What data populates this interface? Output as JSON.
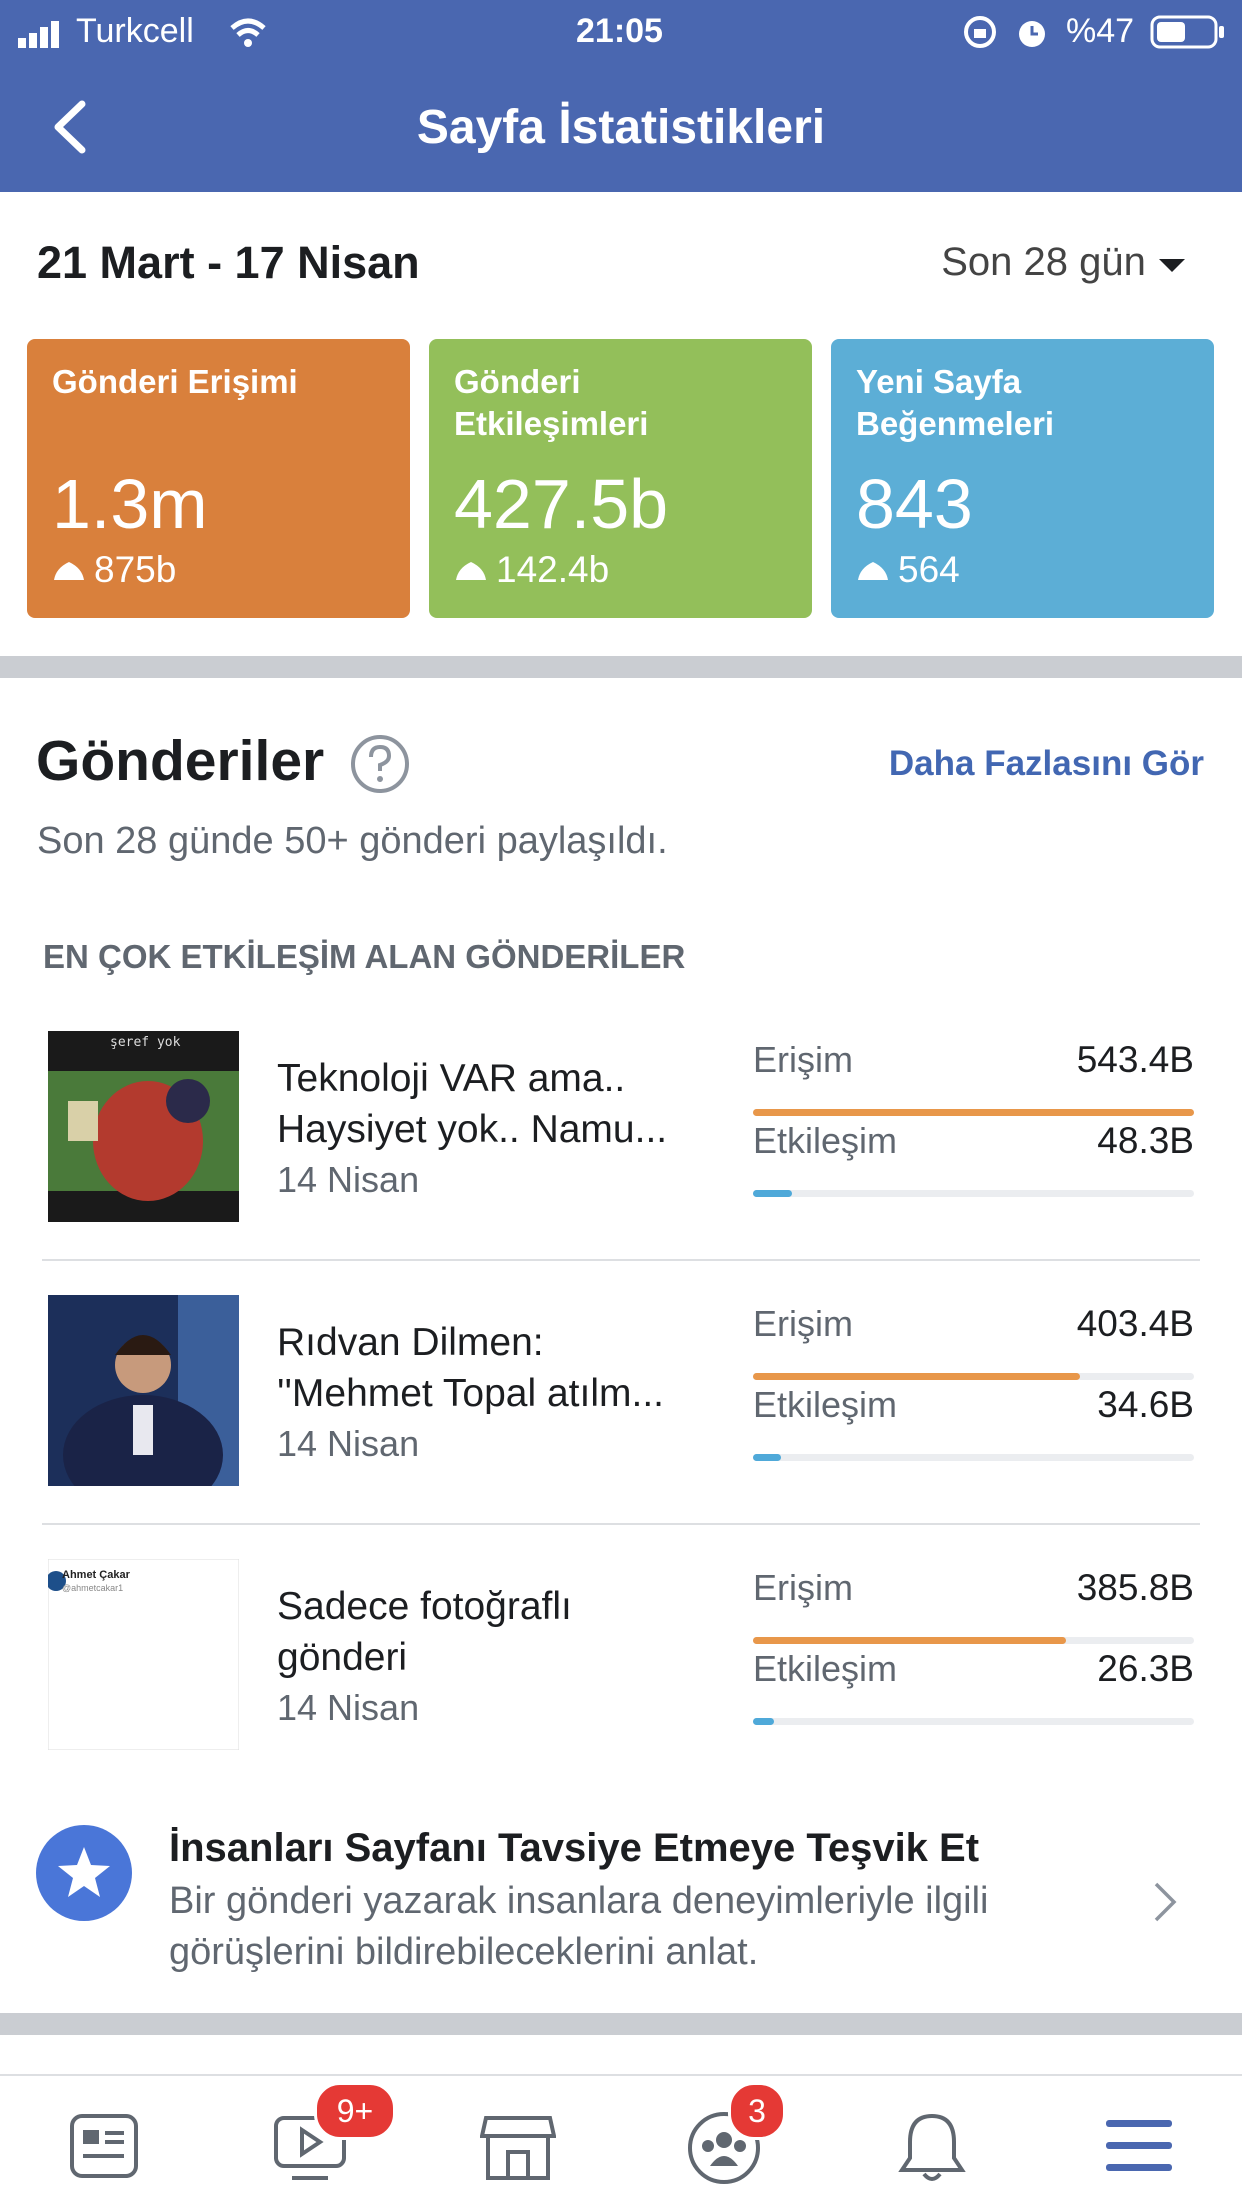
{
  "status_bar": {
    "carrier": "Turkcell",
    "time": "21:05",
    "battery": "%47"
  },
  "header": {
    "title": "Sayfa İstatistikleri"
  },
  "summary": {
    "date_range": "21 Mart - 17 Nisan",
    "period": "Son 28 gün",
    "cards": [
      {
        "label_lines": [
          "Gönderi Erişimi"
        ],
        "value": "1.3m",
        "change": "875b",
        "color": "#d9803c"
      },
      {
        "label_lines": [
          "Gönderi",
          "Etkileşimleri"
        ],
        "value": "427.5b",
        "change": "142.4b",
        "color": "#93bf5a"
      },
      {
        "label_lines": [
          "Yeni Sayfa",
          "Beğenmeleri"
        ],
        "value": "843",
        "change": "564",
        "color": "#5caed6"
      }
    ]
  },
  "posts": {
    "title": "Gönderiler",
    "see_more": "Daha Fazlasını Gör",
    "subtitle": "Son 28 günde 50+ gönderi paylaşıldı.",
    "section_label": "EN ÇOK ETKİLEŞİM ALAN GÖNDERİLER",
    "reach_label": "Erişim",
    "engagement_label": "Etkileşim",
    "items": [
      {
        "title_lines": [
          "Teknoloji VAR ama..",
          "Haysiyet yok.. Namu..."
        ],
        "date": "14 Nisan",
        "image_text": "şeref yok",
        "reach": {
          "value": 543.4,
          "label": "543.4B"
        },
        "engagement": {
          "value": 48.3,
          "label": "48.3B"
        }
      },
      {
        "title_lines": [
          "Rıdvan Dilmen:",
          "''Mehmet Topal atılm..."
        ],
        "date": "14 Nisan",
        "reach": {
          "value": 403.4,
          "label": "403.4B"
        },
        "engagement": {
          "value": 34.6,
          "label": "34.6B"
        }
      },
      {
        "title_lines": [
          "Sadece fotoğraflı",
          "gönderi"
        ],
        "date": "14 Nisan",
        "image_text": "Ahmet Çakar",
        "image_subtext": "@ahmetcakar1",
        "reach": {
          "value": 385.8,
          "label": "385.8B"
        },
        "engagement": {
          "value": 26.3,
          "label": "26.3B"
        }
      }
    ]
  },
  "recommend": {
    "title": "İnsanları Sayfanı Tavsiye Etmeye Teşvik Et",
    "body_lines": [
      "Bir gönderi yazarak insanlara deneyimleriyle ilgili",
      "görüşlerini bildirebileceklerini anlat."
    ]
  },
  "tab_bar": {
    "watch_badge": "9+",
    "groups_badge": "3"
  }
}
